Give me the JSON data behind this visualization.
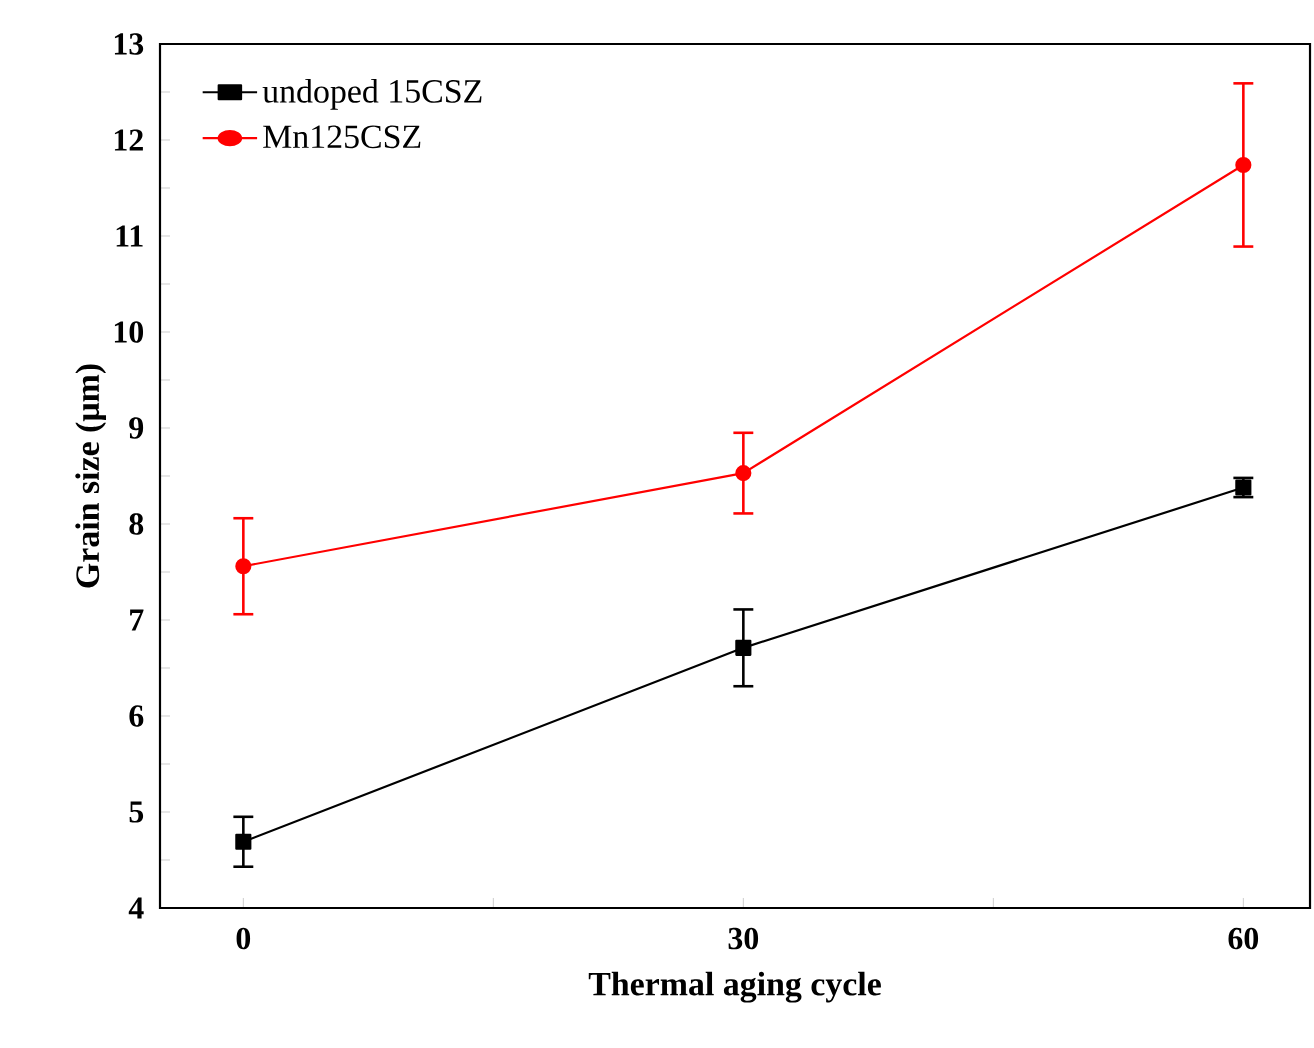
{
  "chart_data": {
    "type": "line",
    "xlabel": "Thermal aging cycle",
    "ylabel": "Grain size (μm)",
    "x": [
      0,
      30,
      60
    ],
    "series": [
      {
        "name": "undoped 15CSZ",
        "color": "#000000",
        "marker": "square",
        "values": [
          4.69,
          6.71,
          8.38
        ],
        "errors": [
          0.26,
          0.4,
          0.1
        ]
      },
      {
        "name": "Mn125CSZ",
        "color": "#ff0000",
        "marker": "circle",
        "values": [
          7.56,
          8.53,
          11.74
        ],
        "errors": [
          0.5,
          0.42,
          0.85
        ]
      }
    ],
    "xlim": [
      -5,
      64
    ],
    "xticks": [
      0,
      {
        "value": 15,
        "label": null
      },
      30,
      {
        "value": 45,
        "label": null
      },
      60
    ],
    "ylim": [
      4,
      13
    ],
    "yticks": [
      4,
      {
        "value": 4.5,
        "label": null
      },
      5,
      {
        "value": 5.5,
        "label": null
      },
      6,
      {
        "value": 6.5,
        "label": null
      },
      7,
      {
        "value": 7.5,
        "label": null
      },
      8,
      {
        "value": 8.5,
        "label": null
      },
      9,
      {
        "value": 9.5,
        "label": null
      },
      10,
      {
        "value": 10.5,
        "label": null
      },
      11,
      {
        "value": 11.5,
        "label": null
      },
      12,
      {
        "value": 12.5,
        "label": null
      },
      13
    ],
    "legend": "top left",
    "grid": false,
    "line_style": "solid"
  }
}
